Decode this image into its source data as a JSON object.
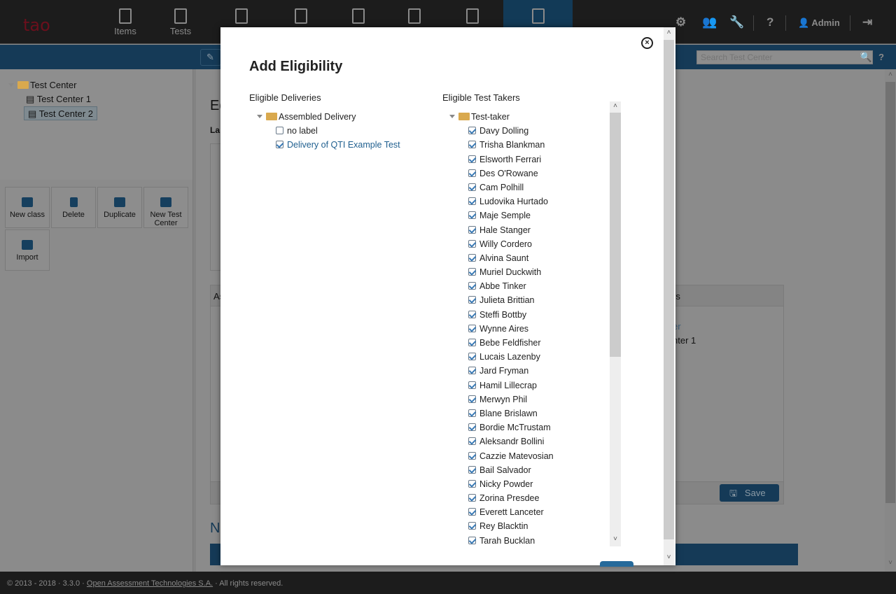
{
  "header": {
    "logo_text": "tao",
    "nav": [
      {
        "label": "Items",
        "icon": "items-icon"
      },
      {
        "label": "Tests",
        "icon": "tests-icon"
      },
      {
        "label": "",
        "icon": "test-takers-icon"
      },
      {
        "label": "",
        "icon": "groups-icon"
      },
      {
        "label": "",
        "icon": "deliveries-icon"
      },
      {
        "label": "",
        "icon": "results-icon"
      },
      {
        "label": "",
        "icon": "extensions-icon"
      },
      {
        "label": "",
        "icon": "test-center-icon",
        "active": true
      }
    ],
    "user": "Admin",
    "help": "?"
  },
  "toolbar": {
    "search_placeholder": "Search Test Center",
    "help": "?"
  },
  "tree": {
    "root": "Test Center",
    "children": [
      "Test Center 1",
      "Test Center 2"
    ],
    "selected": "Test Center 2"
  },
  "actions": [
    "New class",
    "Delete",
    "Duplicate",
    "New Test Center",
    "Import"
  ],
  "main": {
    "title_fragment": "Ed",
    "label_fragment": "La",
    "panel_header_left": "As",
    "panel_header_right": "rs",
    "item1": "er",
    "item2": "nter 1",
    "save": "Save",
    "section_fragment": "N"
  },
  "footer": {
    "prefix": "© 2013 - 2018 · 3.3.0 · ",
    "link": "Open Assessment Technologies S.A.",
    "suffix": " · All rights reserved."
  },
  "modal": {
    "title": "Add Eligibility",
    "close": "×",
    "deliveries": {
      "heading": "Eligible Deliveries",
      "folder": "Assembled Delivery",
      "items": [
        {
          "label": "no label",
          "checked": false
        },
        {
          "label": "Delivery of QTI Example Test",
          "checked": true
        }
      ]
    },
    "test_takers": {
      "heading": "Eligible Test Takers",
      "folder": "Test-taker",
      "items": [
        "Davy Dolling",
        "Trisha Blankman",
        "Elsworth Ferrari",
        "Des O'Rowane",
        "Cam Polhill",
        "Ludovika Hurtado",
        "Maje Semple",
        "Hale Stanger",
        "Willy Cordero",
        "Alvina Saunt",
        "Muriel Duckwith",
        "Abbe Tinker",
        "Julieta Brittian",
        "Steffi Bottby",
        "Wynne Aires",
        "Bebe Feldfisher",
        "Lucais Lazenby",
        "Jard Fryman",
        "Hamil Lillecrap",
        "Merwyn Phil",
        "Blane Brislawn",
        "Bordie McTrustam",
        "Aleksandr Bollini",
        "Cazzie Matevosian",
        "Bail Salvador",
        "Nicky Powder",
        "Zorina Presdee",
        "Everett Lanceter",
        "Rey Blacktin",
        "Tarah Bucklan"
      ]
    }
  },
  "colors": {
    "accent": "#266a9b",
    "header_bg": "#1c1c1c",
    "brand_blue": "#153a57",
    "folder": "#d9a94e"
  }
}
